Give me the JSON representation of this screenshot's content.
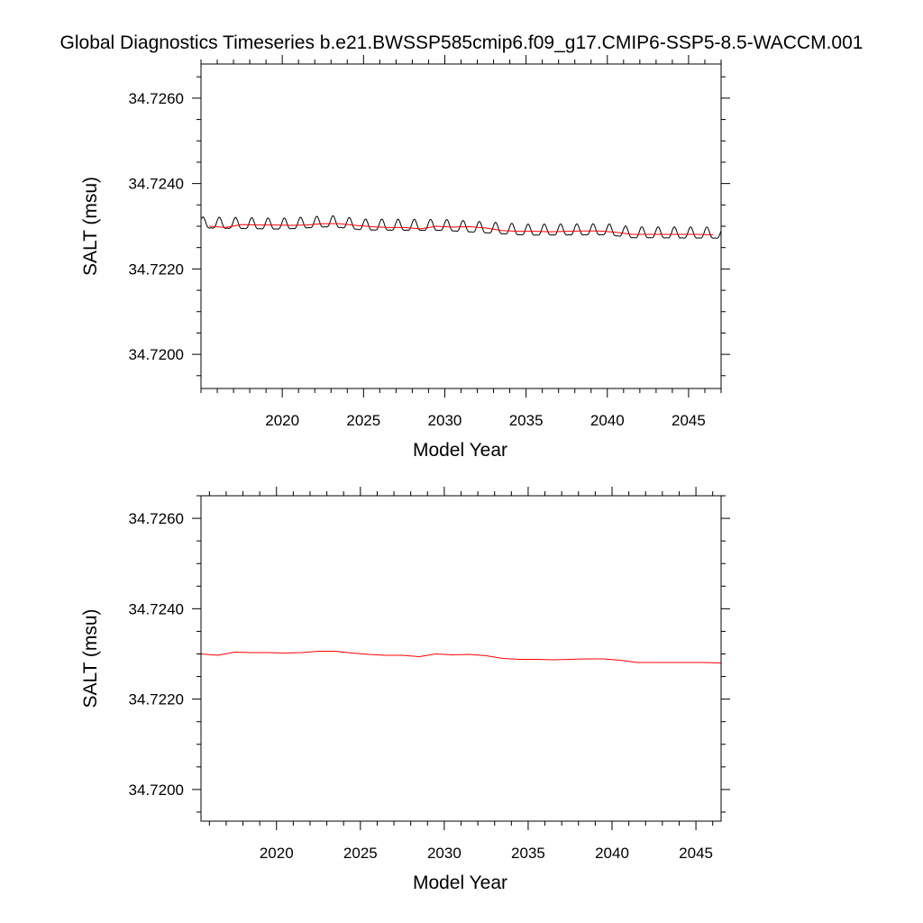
{
  "title": "Global Diagnostics Timeseries b.e21.BWSSP585cmip6.f09_g17.CMIP6-SSP5-8.5-WACCM.001",
  "colors": {
    "monthly": "#000000",
    "annual": "#ff0000",
    "frame": "#000000"
  },
  "chart_data": [
    {
      "type": "line",
      "xlabel": "Model Year",
      "ylabel": "SALT (msu)",
      "xlim": [
        2015,
        2047
      ],
      "ylim": [
        34.7192,
        34.7268
      ],
      "x_ticks": [
        2020,
        2025,
        2030,
        2035,
        2040,
        2045
      ],
      "x_tick_labels": [
        "2020",
        "2025",
        "2030",
        "2035",
        "2040",
        "2045"
      ],
      "y_ticks": [
        34.72,
        34.722,
        34.724,
        34.726
      ],
      "y_tick_labels": [
        "34.7200",
        "34.7220",
        "34.7240",
        "34.7260"
      ],
      "grid": false,
      "series": [
        {
          "style": "monthly",
          "x_start": 2015.04,
          "x_step": 0.0833,
          "seasonal_amplitude": 0.00017,
          "seasonal_peak_month": 1.5,
          "anchors": [
            [
              2015,
              34.72305
            ],
            [
              2020,
              34.72302
            ],
            [
              2023,
              34.72308
            ],
            [
              2025,
              34.723
            ],
            [
              2030,
              34.72299
            ],
            [
              2035,
              34.72288
            ],
            [
              2040,
              34.72289
            ],
            [
              2041.5,
              34.72282
            ],
            [
              2047,
              34.72281
            ]
          ]
        },
        {
          "style": "annual",
          "x": [
            2015.5,
            2016.5,
            2017.5,
            2018.5,
            2019.5,
            2020.5,
            2021.5,
            2022.5,
            2023.5,
            2024.5,
            2025.5,
            2026.5,
            2027.5,
            2028.5,
            2029.5,
            2030.5,
            2031.5,
            2032.5,
            2033.5,
            2034.5,
            2035.5,
            2036.5,
            2037.5,
            2038.5,
            2039.5,
            2040.5,
            2041.5,
            2042.5,
            2043.5,
            2044.5,
            2045.5,
            2046.5
          ],
          "values": [
            34.723,
            34.72297,
            34.72304,
            34.72303,
            34.72303,
            34.72302,
            34.72303,
            34.72306,
            34.72306,
            34.72302,
            34.72299,
            34.72297,
            34.72297,
            34.72294,
            34.723,
            34.72298,
            34.72299,
            34.72296,
            34.7229,
            34.72288,
            34.72288,
            34.72287,
            34.72288,
            34.72289,
            34.72289,
            34.72286,
            34.72281,
            34.72281,
            34.72281,
            34.72281,
            34.72281,
            34.7228
          ]
        }
      ]
    },
    {
      "type": "line",
      "xlabel": "Model Year",
      "ylabel": "SALT (msu)",
      "xlim": [
        2015.5,
        2046.5
      ],
      "ylim": [
        34.7193,
        34.7265
      ],
      "x_ticks": [
        2020,
        2025,
        2030,
        2035,
        2040,
        2045
      ],
      "x_tick_labels": [
        "2020",
        "2025",
        "2030",
        "2035",
        "2040",
        "2045"
      ],
      "y_ticks": [
        34.72,
        34.722,
        34.724,
        34.726
      ],
      "y_tick_labels": [
        "34.7200",
        "34.7220",
        "34.7240",
        "34.7260"
      ],
      "grid": false,
      "series": [
        {
          "style": "annual",
          "x": [
            2015.5,
            2016.5,
            2017.5,
            2018.5,
            2019.5,
            2020.5,
            2021.5,
            2022.5,
            2023.5,
            2024.5,
            2025.5,
            2026.5,
            2027.5,
            2028.5,
            2029.5,
            2030.5,
            2031.5,
            2032.5,
            2033.5,
            2034.5,
            2035.5,
            2036.5,
            2037.5,
            2038.5,
            2039.5,
            2040.5,
            2041.5,
            2042.5,
            2043.5,
            2044.5,
            2045.5,
            2046.5
          ],
          "values": [
            34.723,
            34.72297,
            34.72304,
            34.72303,
            34.72303,
            34.72302,
            34.72303,
            34.72306,
            34.72306,
            34.72302,
            34.72299,
            34.72297,
            34.72297,
            34.72294,
            34.723,
            34.72298,
            34.72299,
            34.72296,
            34.7229,
            34.72288,
            34.72288,
            34.72287,
            34.72288,
            34.72289,
            34.72289,
            34.72286,
            34.72281,
            34.72281,
            34.72281,
            34.72281,
            34.72281,
            34.7228
          ]
        }
      ]
    }
  ]
}
